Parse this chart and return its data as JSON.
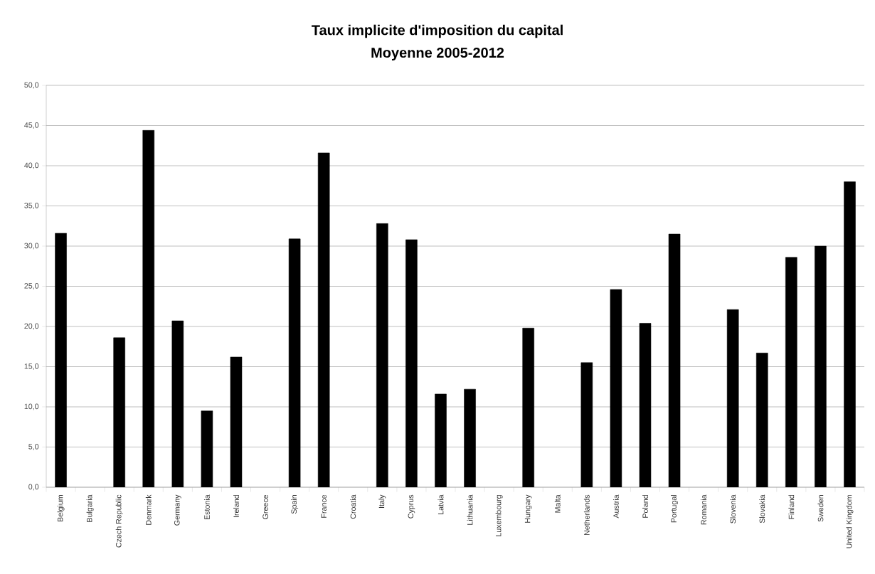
{
  "chart_data": {
    "type": "bar",
    "title": "Taux implicite d'imposition du capital",
    "subtitle": "Moyenne 2005-2012",
    "categories": [
      "Belgium",
      "Bulgaria",
      "Czech Republic",
      "Denmark",
      "Germany",
      "Estonia",
      "Ireland",
      "Greece",
      "Spain",
      "France",
      "Croatia",
      "Italy",
      "Cyprus",
      "Latvia",
      "Lithuania",
      "Luxembourg",
      "Hungary",
      "Malta",
      "Netherlands",
      "Austria",
      "Poland",
      "Portugal",
      "Romania",
      "Slovenia",
      "Slovakia",
      "Finland",
      "Sweden",
      "United Kingdom"
    ],
    "values": [
      31.6,
      null,
      18.6,
      44.4,
      20.7,
      9.5,
      16.2,
      null,
      30.9,
      41.6,
      null,
      32.8,
      30.8,
      11.6,
      12.2,
      null,
      19.8,
      null,
      15.5,
      24.6,
      20.4,
      31.5,
      null,
      22.1,
      16.7,
      28.6,
      30.0,
      38.0
    ],
    "color": "#000000",
    "ylim": [
      0,
      50
    ],
    "yticks": [
      {
        "value": 0,
        "label": "0,0"
      },
      {
        "value": 5,
        "label": "5,0"
      },
      {
        "value": 10,
        "label": "10,0"
      },
      {
        "value": 15,
        "label": "15,0"
      },
      {
        "value": 20,
        "label": "20,0"
      },
      {
        "value": 25,
        "label": "25,0"
      },
      {
        "value": 30,
        "label": "30,0"
      },
      {
        "value": 35,
        "label": "35,0"
      },
      {
        "value": 40,
        "label": "40,0"
      },
      {
        "value": 45,
        "label": "45,0"
      },
      {
        "value": 50,
        "label": "50,0"
      }
    ],
    "grid": "y"
  }
}
